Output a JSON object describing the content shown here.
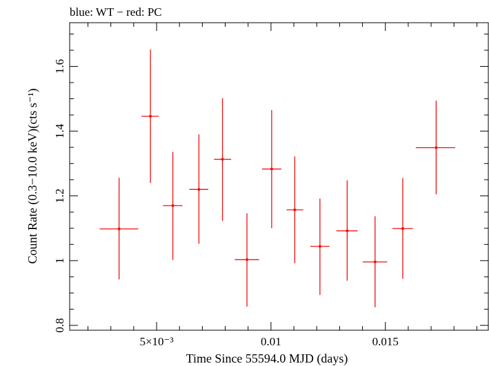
{
  "chart_data": {
    "type": "scatter",
    "title": "blue: WT − red: PC",
    "xlabel": "Time Since 55594.0 MJD (days)",
    "ylabel": "Count Rate (0.3−10.0 keV)(cts s⁻¹)",
    "xlim": [
      0.0012,
      0.0195
    ],
    "ylim": [
      0.785,
      1.735
    ],
    "x_ticks": [
      {
        "value": 0.005,
        "label": "5×10⁻³"
      },
      {
        "value": 0.01,
        "label": "0.01"
      },
      {
        "value": 0.015,
        "label": "0.015"
      }
    ],
    "y_ticks": [
      {
        "value": 0.8,
        "label": "0.8"
      },
      {
        "value": 1.0,
        "label": "1"
      },
      {
        "value": 1.2,
        "label": "1.2"
      },
      {
        "value": 1.4,
        "label": "1.4"
      },
      {
        "value": 1.6,
        "label": "1.6"
      }
    ],
    "grid": false,
    "series": [
      {
        "name": "PC",
        "color": "#ee1111",
        "points": [
          {
            "x": 0.00336,
            "xlo": 0.00251,
            "xhi": 0.0042,
            "y": 1.098,
            "ylo": 0.942,
            "yhi": 1.256
          },
          {
            "x": 0.00473,
            "xlo": 0.00434,
            "xhi": 0.0051,
            "y": 1.446,
            "ylo": 1.24,
            "yhi": 1.652
          },
          {
            "x": 0.00571,
            "xlo": 0.00528,
            "xhi": 0.00613,
            "y": 1.17,
            "ylo": 1.002,
            "yhi": 1.336
          },
          {
            "x": 0.00685,
            "xlo": 0.00643,
            "xhi": 0.00726,
            "y": 1.22,
            "ylo": 1.052,
            "yhi": 1.39
          },
          {
            "x": 0.00788,
            "xlo": 0.00751,
            "xhi": 0.00826,
            "y": 1.313,
            "ylo": 1.123,
            "yhi": 1.502
          },
          {
            "x": 0.00895,
            "xlo": 0.00842,
            "xhi": 0.00948,
            "y": 1.003,
            "ylo": 0.858,
            "yhi": 1.146
          },
          {
            "x": 0.01003,
            "xlo": 0.00961,
            "xhi": 0.01045,
            "y": 1.283,
            "ylo": 1.1,
            "yhi": 1.465
          },
          {
            "x": 0.01104,
            "xlo": 0.01068,
            "xhi": 0.01141,
            "y": 1.157,
            "ylo": 0.992,
            "yhi": 1.322
          },
          {
            "x": 0.01214,
            "xlo": 0.01172,
            "xhi": 0.01256,
            "y": 1.044,
            "ylo": 0.894,
            "yhi": 1.192
          },
          {
            "x": 0.01333,
            "xlo": 0.01286,
            "xhi": 0.01379,
            "y": 1.092,
            "ylo": 0.938,
            "yhi": 1.248
          },
          {
            "x": 0.01455,
            "xlo": 0.01401,
            "xhi": 0.01508,
            "y": 0.996,
            "ylo": 0.856,
            "yhi": 1.137
          },
          {
            "x": 0.01576,
            "xlo": 0.01531,
            "xhi": 0.0162,
            "y": 1.099,
            "ylo": 0.944,
            "yhi": 1.255
          },
          {
            "x": 0.01722,
            "xlo": 0.01633,
            "xhi": 0.01805,
            "y": 1.349,
            "ylo": 1.205,
            "yhi": 1.494
          }
        ]
      }
    ]
  }
}
